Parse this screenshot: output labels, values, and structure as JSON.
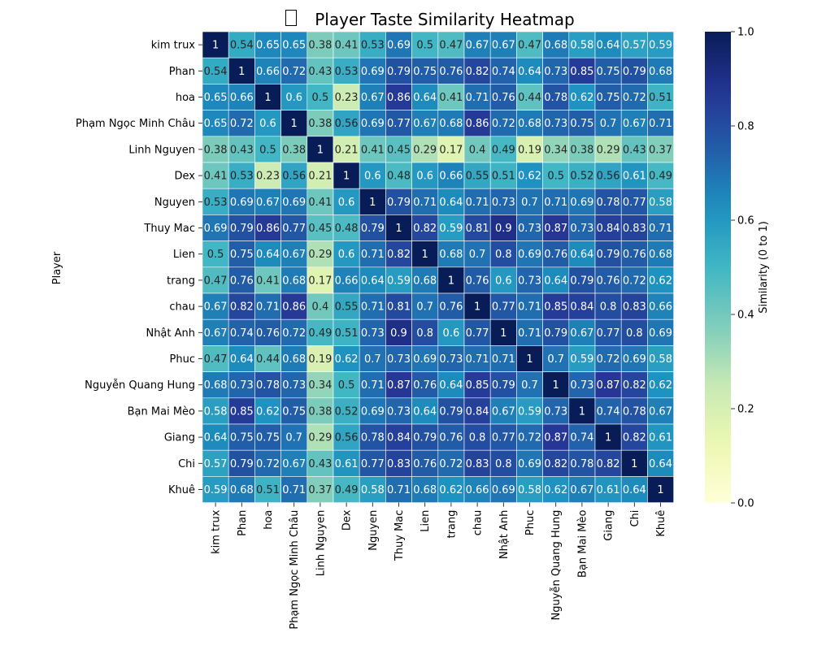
{
  "chart_data": {
    "type": "heatmap",
    "title": "Player Taste Similarity Heatmap",
    "title_icon": "missing-glyph-box",
    "ylabel": "Player",
    "xlabel": "",
    "colorbar_label": "Similarity (0 to 1)",
    "colormap": "YlGnBu",
    "colorbar_range": [
      0,
      1
    ],
    "colorbar_ticks": [
      "0.0",
      "0.2",
      "0.4",
      "0.6",
      "0.8",
      "1.0"
    ],
    "annotations": true,
    "players": [
      "kim trux",
      "Phan",
      "hoa",
      "Phạm Ngọc Minh Châu",
      "Linh Nguyen",
      "Dex",
      "Nguyen",
      "Thuy Mac",
      "Lien",
      "trang",
      "chau",
      "Nhật Anh",
      "Phuc",
      "Nguyễn Quang Hung",
      "Bạn Mai Mèo",
      "Giang",
      "Chi",
      "Khuê"
    ],
    "matrix": [
      [
        1,
        0.54,
        0.65,
        0.65,
        0.38,
        0.41,
        0.53,
        0.69,
        0.5,
        0.47,
        0.67,
        0.67,
        0.47,
        0.68,
        0.58,
        0.64,
        0.57,
        0.59
      ],
      [
        0.54,
        1,
        0.66,
        0.72,
        0.43,
        0.53,
        0.69,
        0.79,
        0.75,
        0.76,
        0.82,
        0.74,
        0.64,
        0.73,
        0.85,
        0.75,
        0.79,
        0.68
      ],
      [
        0.65,
        0.66,
        1,
        0.6,
        0.5,
        0.23,
        0.67,
        0.86,
        0.64,
        0.41,
        0.71,
        0.76,
        0.44,
        0.78,
        0.62,
        0.75,
        0.72,
        0.51
      ],
      [
        0.65,
        0.72,
        0.6,
        1,
        0.38,
        0.56,
        0.69,
        0.77,
        0.67,
        0.68,
        0.86,
        0.72,
        0.68,
        0.73,
        0.75,
        0.7,
        0.67,
        0.71
      ],
      [
        0.38,
        0.43,
        0.5,
        0.38,
        1,
        0.21,
        0.41,
        0.45,
        0.29,
        0.17,
        0.4,
        0.49,
        0.19,
        0.34,
        0.38,
        0.29,
        0.43,
        0.37
      ],
      [
        0.41,
        0.53,
        0.23,
        0.56,
        0.21,
        1,
        0.6,
        0.48,
        0.6,
        0.66,
        0.55,
        0.51,
        0.62,
        0.5,
        0.52,
        0.56,
        0.61,
        0.49
      ],
      [
        0.53,
        0.69,
        0.67,
        0.69,
        0.41,
        0.6,
        1,
        0.79,
        0.71,
        0.64,
        0.71,
        0.73,
        0.7,
        0.71,
        0.69,
        0.78,
        0.77,
        0.58
      ],
      [
        0.69,
        0.79,
        0.86,
        0.77,
        0.45,
        0.48,
        0.79,
        1,
        0.82,
        0.59,
        0.81,
        0.9,
        0.73,
        0.87,
        0.73,
        0.84,
        0.83,
        0.71
      ],
      [
        0.5,
        0.75,
        0.64,
        0.67,
        0.29,
        0.6,
        0.71,
        0.82,
        1,
        0.68,
        0.7,
        0.8,
        0.69,
        0.76,
        0.64,
        0.79,
        0.76,
        0.68
      ],
      [
        0.47,
        0.76,
        0.41,
        0.68,
        0.17,
        0.66,
        0.64,
        0.59,
        0.68,
        1,
        0.76,
        0.6,
        0.73,
        0.64,
        0.79,
        0.76,
        0.72,
        0.62
      ],
      [
        0.67,
        0.82,
        0.71,
        0.86,
        0.4,
        0.55,
        0.71,
        0.81,
        0.7,
        0.76,
        1,
        0.77,
        0.71,
        0.85,
        0.84,
        0.8,
        0.83,
        0.66
      ],
      [
        0.67,
        0.74,
        0.76,
        0.72,
        0.49,
        0.51,
        0.73,
        0.9,
        0.8,
        0.6,
        0.77,
        1,
        0.71,
        0.79,
        0.67,
        0.77,
        0.8,
        0.69
      ],
      [
        0.47,
        0.64,
        0.44,
        0.68,
        0.19,
        0.62,
        0.7,
        0.73,
        0.69,
        0.73,
        0.71,
        0.71,
        1,
        0.7,
        0.59,
        0.72,
        0.69,
        0.58
      ],
      [
        0.68,
        0.73,
        0.78,
        0.73,
        0.34,
        0.5,
        0.71,
        0.87,
        0.76,
        0.64,
        0.85,
        0.79,
        0.7,
        1,
        0.73,
        0.87,
        0.82,
        0.62
      ],
      [
        0.58,
        0.85,
        0.62,
        0.75,
        0.38,
        0.52,
        0.69,
        0.73,
        0.64,
        0.79,
        0.84,
        0.67,
        0.59,
        0.73,
        1,
        0.74,
        0.78,
        0.67
      ],
      [
        0.64,
        0.75,
        0.75,
        0.7,
        0.29,
        0.56,
        0.78,
        0.84,
        0.79,
        0.76,
        0.8,
        0.77,
        0.72,
        0.87,
        0.74,
        1,
        0.82,
        0.61
      ],
      [
        0.57,
        0.79,
        0.72,
        0.67,
        0.43,
        0.61,
        0.77,
        0.83,
        0.76,
        0.72,
        0.83,
        0.8,
        0.69,
        0.82,
        0.78,
        0.82,
        1,
        0.64
      ],
      [
        0.59,
        0.68,
        0.51,
        0.71,
        0.37,
        0.49,
        0.58,
        0.71,
        0.68,
        0.62,
        0.66,
        0.69,
        0.58,
        0.62,
        0.67,
        0.61,
        0.64,
        1
      ]
    ]
  }
}
